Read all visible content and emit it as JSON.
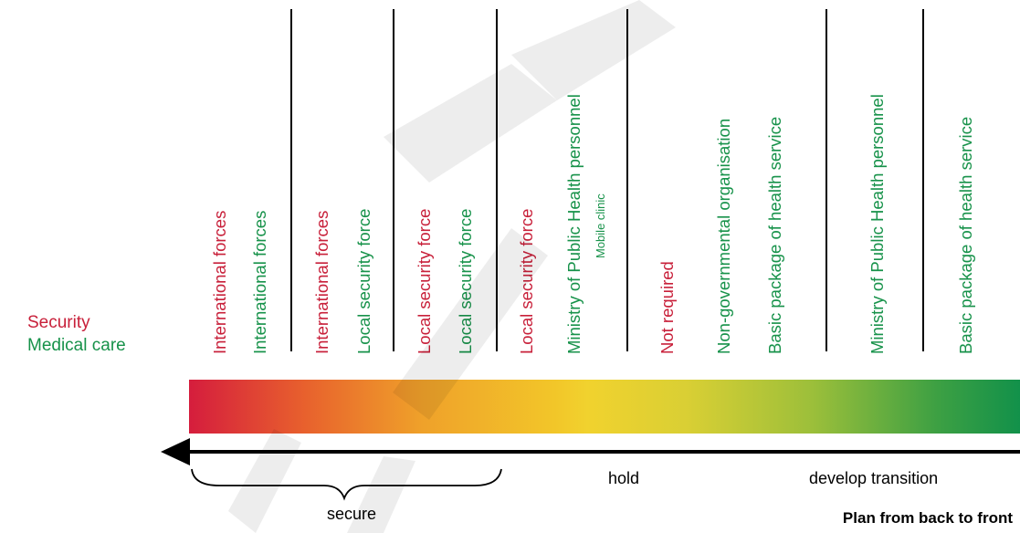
{
  "legend": {
    "security": "Security",
    "medical": "Medical care"
  },
  "columns": [
    {
      "text": "International forces",
      "category": "security"
    },
    {
      "text": "International forces",
      "category": "medical"
    },
    {
      "text": "International forces",
      "category": "security"
    },
    {
      "text": "Local security force",
      "category": "medical"
    },
    {
      "text": "Local security force",
      "category": "security"
    },
    {
      "text": "Local security force",
      "category": "medical"
    },
    {
      "text": "Local security force",
      "category": "security"
    },
    {
      "text": "Ministry of Public Health personnel",
      "category": "medical",
      "note": "Mobile clinic"
    },
    {
      "text": "Not required",
      "category": "security"
    },
    {
      "text": "Non-governmental organisation",
      "category": "medical"
    },
    {
      "text": "Basic package of health service",
      "category": "medical"
    },
    {
      "text": "Ministry of Public Health personnel",
      "category": "medical"
    },
    {
      "text": "Basic package of health service",
      "category": "medical"
    }
  ],
  "phases": {
    "secure": "secure",
    "hold": "hold",
    "develop": "develop transition"
  },
  "footer": "Plan from back to front",
  "colors": {
    "security": "#c8203a",
    "medical": "#17924a",
    "gradient_start": "#d51d3d",
    "gradient_mid": "#f1d22e",
    "gradient_end": "#12914a"
  }
}
